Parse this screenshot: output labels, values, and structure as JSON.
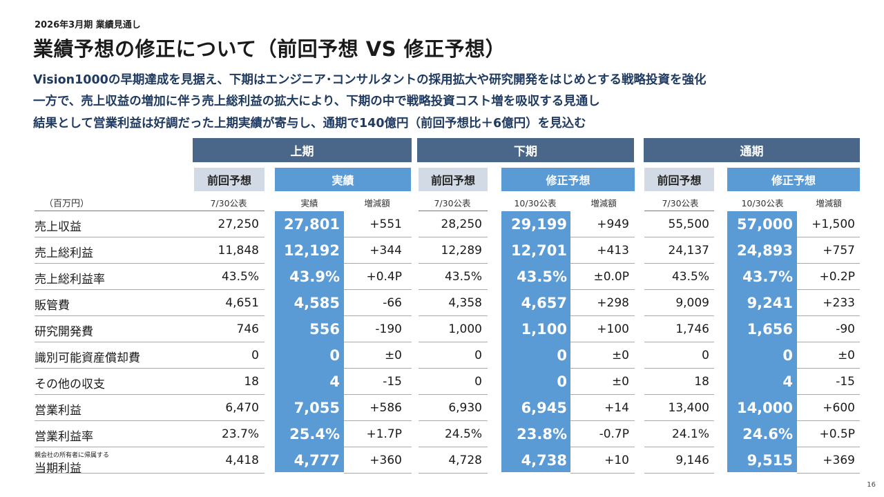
{
  "header": {
    "subtitle": "2026年3月期 業績見通し",
    "title": "業績予想の修正について（前回予想 VS 修正予想）"
  },
  "lead_lines": [
    "Vision1000の早期達成を見据え、下期はエンジニア･コンサルタントの採用拡大や研究開発をはじめとする戦略投資を強化",
    "一方で、売上収益の増加に伴う売上総利益の拡大により、下期の中で戦略投資コスト増を吸収する見通し",
    "結果として営業利益は好調だった上期実績が寄与し、通期で140億円（前回予想比＋6億円）を見込む"
  ],
  "table": {
    "units": "（百万円）",
    "periods": [
      "上期",
      "下期",
      "通期"
    ],
    "subheaders": {
      "prev": "前回予想",
      "actual": "実績",
      "revised": "修正予想"
    },
    "column_headers": {
      "prev_date": "7/30公表",
      "actual": "実績",
      "revised_date": "10/30公表",
      "diff": "増減額"
    },
    "rows": [
      {
        "label": "売上収益",
        "label_small": "",
        "values": [
          "27,250",
          "27,801",
          "+551",
          "28,250",
          "29,199",
          "+949",
          "55,500",
          "57,000",
          "+1,500"
        ]
      },
      {
        "label": "売上総利益",
        "label_small": "",
        "values": [
          "11,848",
          "12,192",
          "+344",
          "12,289",
          "12,701",
          "+413",
          "24,137",
          "24,893",
          "+757"
        ]
      },
      {
        "label": "売上総利益率",
        "label_small": "",
        "values": [
          "43.5%",
          "43.9%",
          "+0.4P",
          "43.5%",
          "43.5%",
          "±0.0P",
          "43.5%",
          "43.7%",
          "+0.2P"
        ]
      },
      {
        "label": "販管費",
        "label_small": "",
        "values": [
          "4,651",
          "4,585",
          "-66",
          "4,358",
          "4,657",
          "+298",
          "9,009",
          "9,241",
          "+233"
        ]
      },
      {
        "label": "研究開発費",
        "label_small": "",
        "values": [
          "746",
          "556",
          "-190",
          "1,000",
          "1,100",
          "+100",
          "1,746",
          "1,656",
          "-90"
        ]
      },
      {
        "label": "識別可能資産償却費",
        "label_small": "",
        "values": [
          "0",
          "0",
          "±0",
          "0",
          "0",
          "±0",
          "0",
          "0",
          "±0"
        ]
      },
      {
        "label": "その他の収支",
        "label_small": "",
        "values": [
          "18",
          "4",
          "-15",
          "0",
          "0",
          "±0",
          "18",
          "4",
          "-15"
        ]
      },
      {
        "label": "営業利益",
        "label_small": "",
        "values": [
          "6,470",
          "7,055",
          "+586",
          "6,930",
          "6,945",
          "+14",
          "13,400",
          "14,000",
          "+600"
        ]
      },
      {
        "label": "営業利益率",
        "label_small": "",
        "values": [
          "23.7%",
          "25.4%",
          "+1.7P",
          "24.5%",
          "23.8%",
          "-0.7P",
          "24.1%",
          "24.6%",
          "+0.5P"
        ]
      },
      {
        "label": "当期利益",
        "label_small": "親会社の所有者に帰属する",
        "values": [
          "4,418",
          "4,777",
          "+360",
          "4,728",
          "4,738",
          "+10",
          "9,146",
          "9,515",
          "+369"
        ]
      }
    ]
  },
  "page_number": "16",
  "colors": {
    "period_header": "#4a6688",
    "highlight_blue": "#5b9bd5",
    "prev_subheader": "#d2dae5",
    "lead_text": "#1f3a60"
  }
}
